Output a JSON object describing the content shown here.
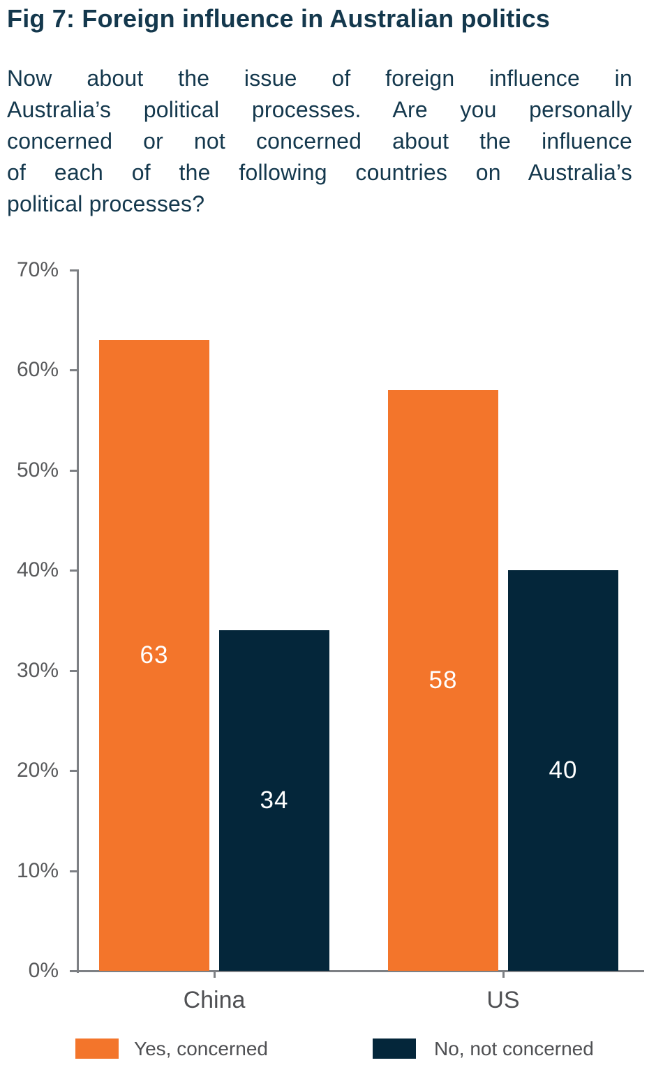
{
  "figure": {
    "title": "Fig 7: Foreign influence in Australian politics",
    "question_lines": [
      "Now about the issue of foreign influence in",
      "Australia’s political processes. Are you personally",
      "concerned or not concerned about the influence",
      "of each of the following countries on Australia’s",
      "political processes?"
    ]
  },
  "chart_data": {
    "type": "bar",
    "title": "Fig 7: Foreign influence in Australian politics",
    "categories": [
      "China",
      "US"
    ],
    "series": [
      {
        "name": "Yes, concerned",
        "color": "#F3752B",
        "values": [
          63,
          58
        ]
      },
      {
        "name": "No, not concerned",
        "color": "#04263A",
        "values": [
          34,
          40
        ]
      }
    ],
    "value_labels": [
      [
        "63",
        "58"
      ],
      [
        "34",
        "40"
      ]
    ],
    "bar_label_color": "#FFFFFF",
    "xlabel": "",
    "ylabel": "",
    "y_axis": {
      "min": 0,
      "max": 70,
      "tick_labels": [
        "0%",
        "10%",
        "20%",
        "30%",
        "40%",
        "50%",
        "60%",
        "70%"
      ]
    },
    "grid": false,
    "legend_position": "bottom"
  },
  "style": {
    "text_navy": "#14384D",
    "axis_gray": "#7D8084",
    "tick_label_gray": "#58595B",
    "category_label_gray": "#4F5053",
    "background": "#FFFFFF"
  }
}
